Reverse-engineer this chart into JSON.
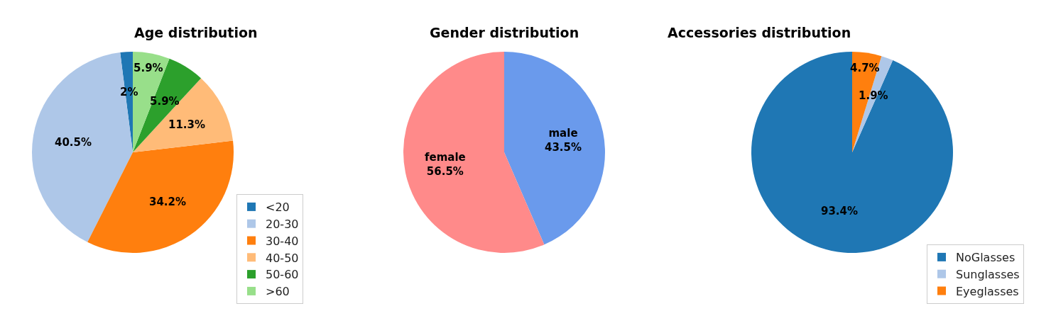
{
  "chart_data": [
    {
      "type": "pie",
      "title": "Age distribution",
      "categories": [
        "<20",
        "20-30",
        "30-40",
        "40-50",
        "50-60",
        ">60"
      ],
      "values": [
        2,
        40.5,
        34.2,
        11.3,
        5.9,
        5.9
      ],
      "colors": [
        "#1f77b4",
        "#aec7e8",
        "#ff7f0e",
        "#ffbb78",
        "#2ca02c",
        "#98df8a"
      ],
      "value_labels": [
        "2%",
        "40.5%",
        "34.2%",
        "11.3%",
        "5.9%",
        "5.9%"
      ],
      "legend": "bottom right"
    },
    {
      "type": "pie",
      "title": "Gender distribution",
      "categories": [
        "male",
        "female"
      ],
      "values": [
        43.5,
        56.5
      ],
      "colors": [
        "#6a9aec",
        "#ff8a8a"
      ],
      "value_labels": [
        "43.5%",
        "56.5%"
      ]
    },
    {
      "type": "pie",
      "title": "Accessories distribution",
      "categories": [
        "NoGlasses",
        "Sunglasses",
        "Eyeglasses"
      ],
      "values": [
        93.4,
        1.9,
        4.7
      ],
      "colors": [
        "#1f77b4",
        "#aec7e8",
        "#ff7f0e"
      ],
      "value_labels": [
        "93.4%",
        "1.9%",
        "4.7%"
      ],
      "legend": "bottom right"
    }
  ]
}
